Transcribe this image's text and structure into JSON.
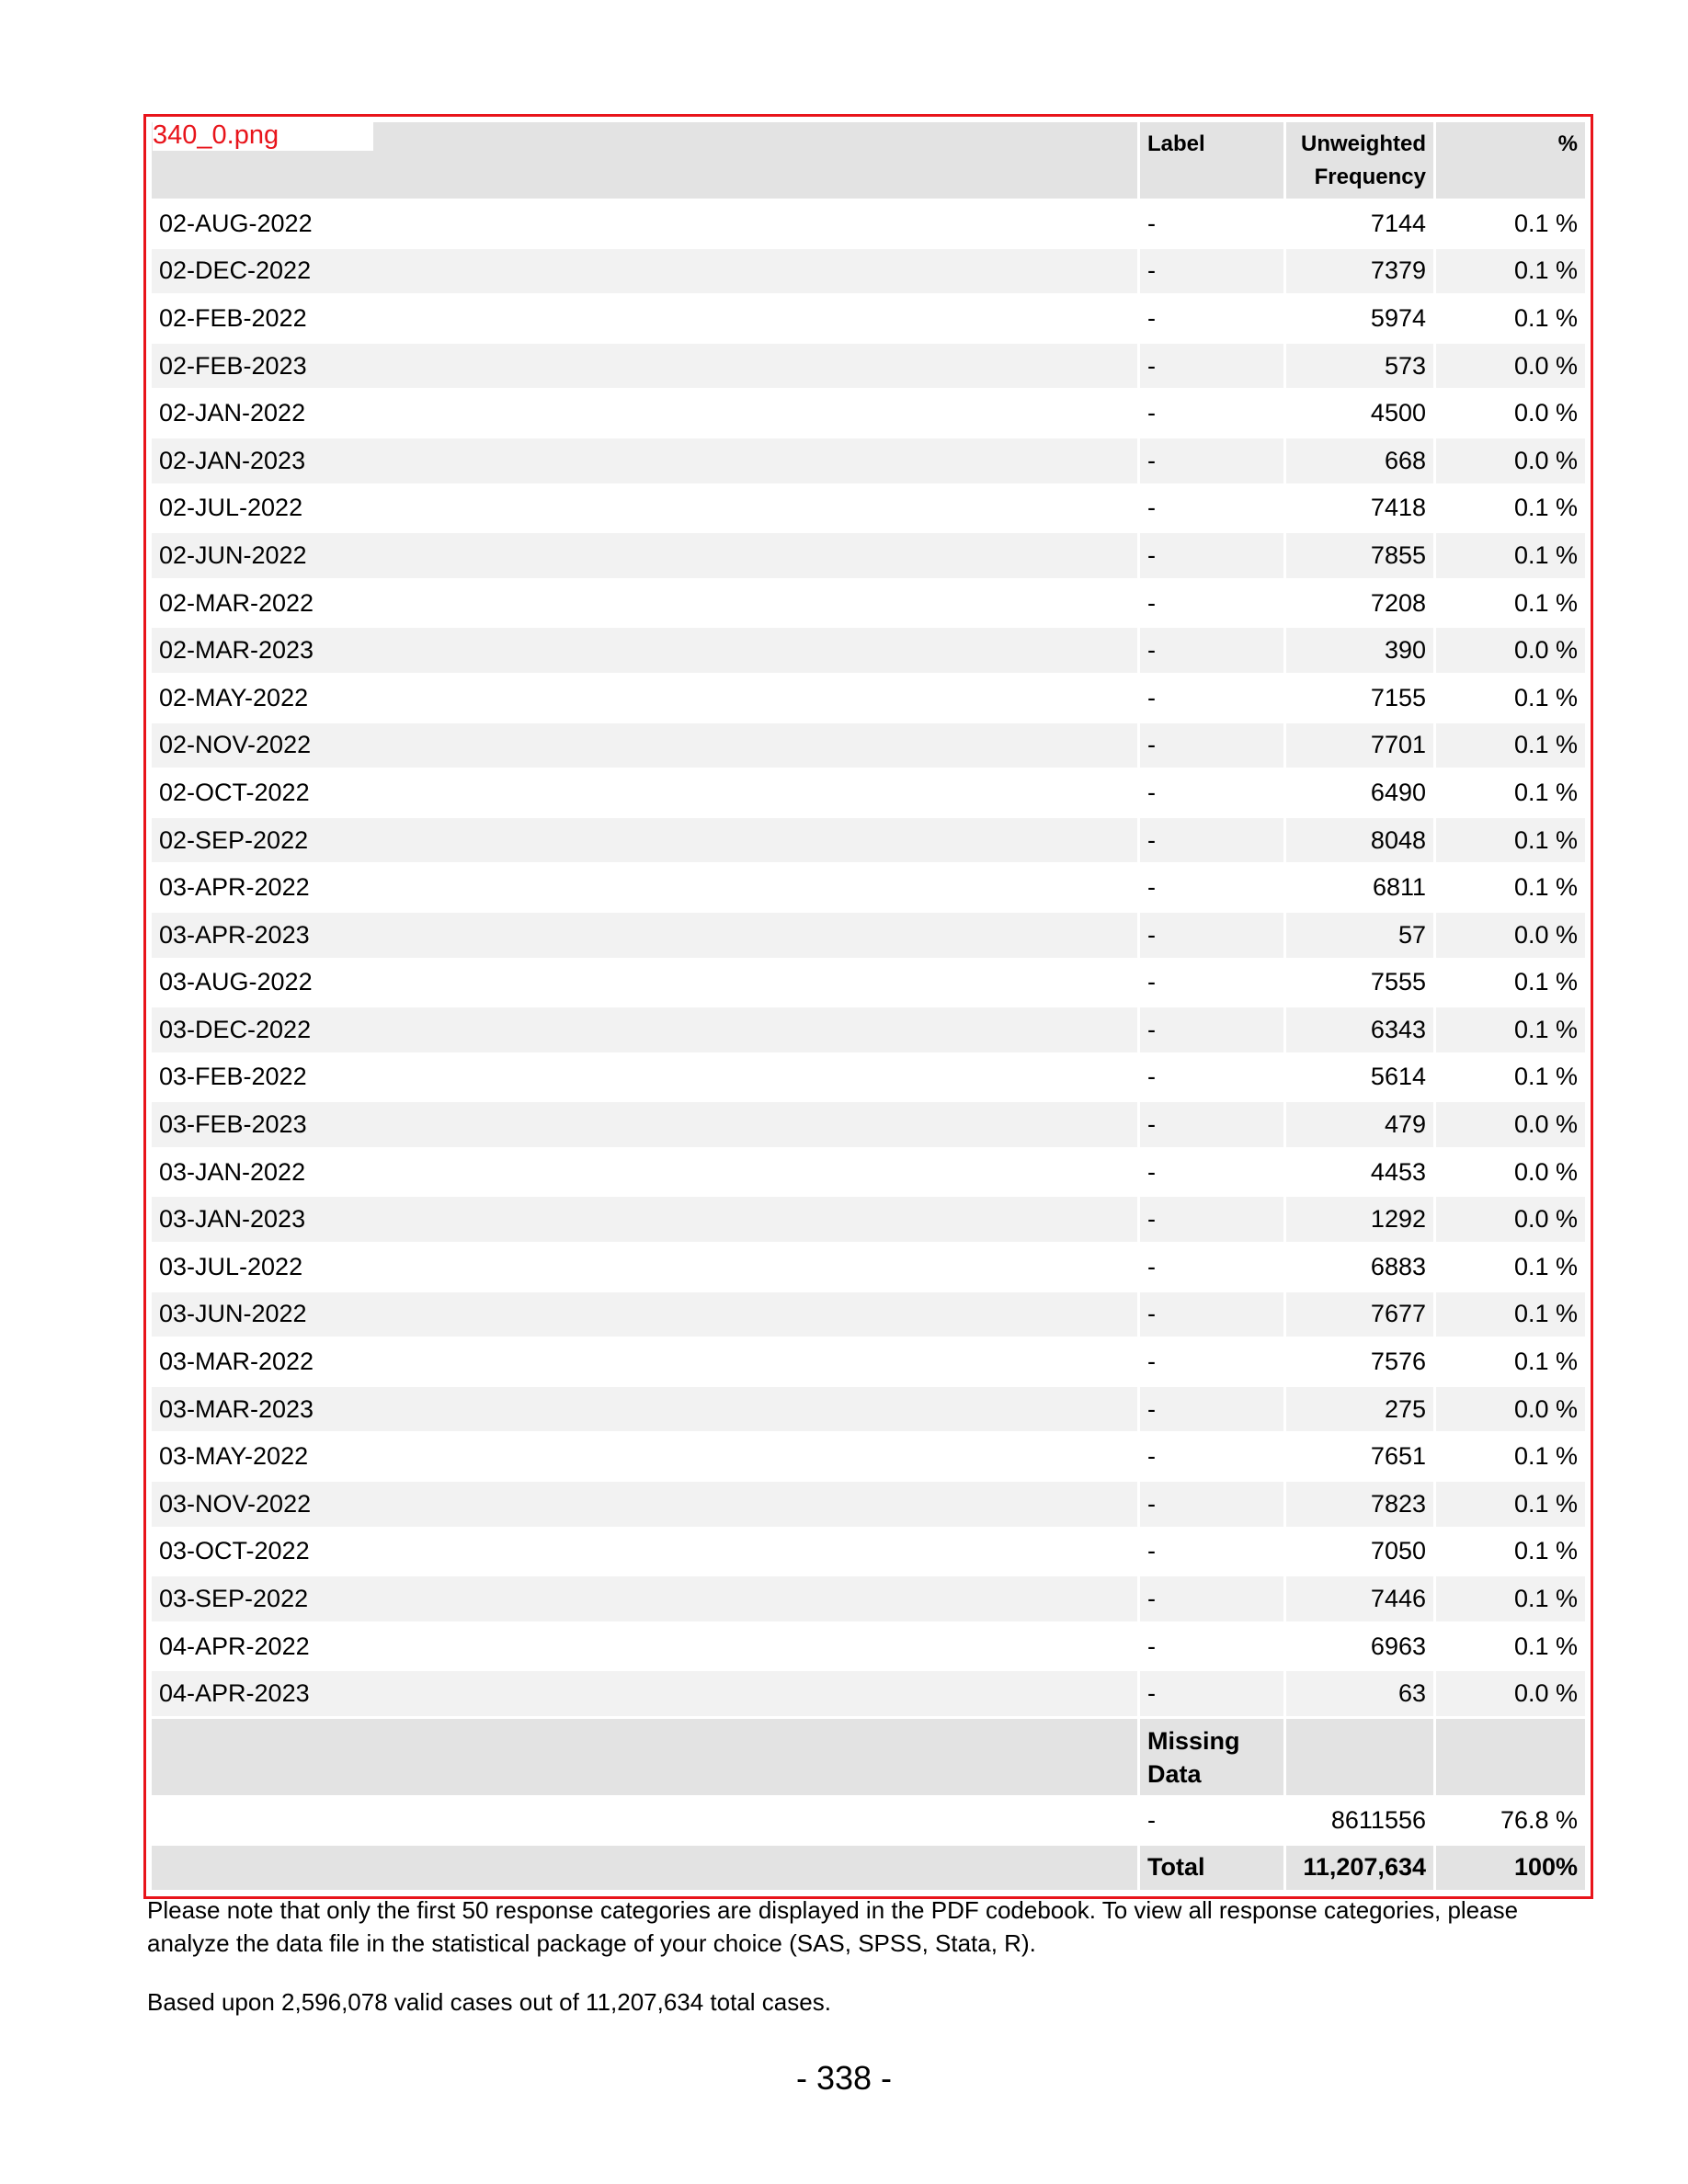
{
  "file_tag": "340_0.png",
  "table": {
    "headers": {
      "value": "",
      "label": "Label",
      "frequency": "Unweighted Frequency",
      "percent": "%"
    },
    "rows": [
      {
        "value": "02-AUG-2022",
        "label": "-",
        "frequency": "7144",
        "percent": "0.1 %"
      },
      {
        "value": "02-DEC-2022",
        "label": "-",
        "frequency": "7379",
        "percent": "0.1 %"
      },
      {
        "value": "02-FEB-2022",
        "label": "-",
        "frequency": "5974",
        "percent": "0.1 %"
      },
      {
        "value": "02-FEB-2023",
        "label": "-",
        "frequency": "573",
        "percent": "0.0 %"
      },
      {
        "value": "02-JAN-2022",
        "label": "-",
        "frequency": "4500",
        "percent": "0.0 %"
      },
      {
        "value": "02-JAN-2023",
        "label": "-",
        "frequency": "668",
        "percent": "0.0 %"
      },
      {
        "value": "02-JUL-2022",
        "label": "-",
        "frequency": "7418",
        "percent": "0.1 %"
      },
      {
        "value": "02-JUN-2022",
        "label": "-",
        "frequency": "7855",
        "percent": "0.1 %"
      },
      {
        "value": "02-MAR-2022",
        "label": "-",
        "frequency": "7208",
        "percent": "0.1 %"
      },
      {
        "value": "02-MAR-2023",
        "label": "-",
        "frequency": "390",
        "percent": "0.0 %"
      },
      {
        "value": "02-MAY-2022",
        "label": "-",
        "frequency": "7155",
        "percent": "0.1 %"
      },
      {
        "value": "02-NOV-2022",
        "label": "-",
        "frequency": "7701",
        "percent": "0.1 %"
      },
      {
        "value": "02-OCT-2022",
        "label": "-",
        "frequency": "6490",
        "percent": "0.1 %"
      },
      {
        "value": "02-SEP-2022",
        "label": "-",
        "frequency": "8048",
        "percent": "0.1 %"
      },
      {
        "value": "03-APR-2022",
        "label": "-",
        "frequency": "6811",
        "percent": "0.1 %"
      },
      {
        "value": "03-APR-2023",
        "label": "-",
        "frequency": "57",
        "percent": "0.0 %"
      },
      {
        "value": "03-AUG-2022",
        "label": "-",
        "frequency": "7555",
        "percent": "0.1 %"
      },
      {
        "value": "03-DEC-2022",
        "label": "-",
        "frequency": "6343",
        "percent": "0.1 %"
      },
      {
        "value": "03-FEB-2022",
        "label": "-",
        "frequency": "5614",
        "percent": "0.1 %"
      },
      {
        "value": "03-FEB-2023",
        "label": "-",
        "frequency": "479",
        "percent": "0.0 %"
      },
      {
        "value": "03-JAN-2022",
        "label": "-",
        "frequency": "4453",
        "percent": "0.0 %"
      },
      {
        "value": "03-JAN-2023",
        "label": "-",
        "frequency": "1292",
        "percent": "0.0 %"
      },
      {
        "value": "03-JUL-2022",
        "label": "-",
        "frequency": "6883",
        "percent": "0.1 %"
      },
      {
        "value": "03-JUN-2022",
        "label": "-",
        "frequency": "7677",
        "percent": "0.1 %"
      },
      {
        "value": "03-MAR-2022",
        "label": "-",
        "frequency": "7576",
        "percent": "0.1 %"
      },
      {
        "value": "03-MAR-2023",
        "label": "-",
        "frequency": "275",
        "percent": "0.0 %"
      },
      {
        "value": "03-MAY-2022",
        "label": "-",
        "frequency": "7651",
        "percent": "0.1 %"
      },
      {
        "value": "03-NOV-2022",
        "label": "-",
        "frequency": "7823",
        "percent": "0.1 %"
      },
      {
        "value": "03-OCT-2022",
        "label": "-",
        "frequency": "7050",
        "percent": "0.1 %"
      },
      {
        "value": "03-SEP-2022",
        "label": "-",
        "frequency": "7446",
        "percent": "0.1 %"
      },
      {
        "value": "04-APR-2022",
        "label": "-",
        "frequency": "6963",
        "percent": "0.1 %"
      },
      {
        "value": "04-APR-2023",
        "label": "-",
        "frequency": "63",
        "percent": "0.0 %"
      }
    ],
    "missing_header": "Missing Data",
    "missing_row": {
      "value": "",
      "label": "-",
      "frequency": "8611556",
      "percent": "76.8 %"
    },
    "total_row": {
      "value": "",
      "label": "Total",
      "frequency": "11,207,634",
      "percent": "100%"
    }
  },
  "notes": {
    "note_1": "Please note that only the first 50 response categories are displayed in the PDF codebook. To view all response categories, please analyze the data file in the statistical package of your choice (SAS, SPSS, Stata, R).",
    "note_2": "Based upon 2,596,078 valid cases out of 11,207,634 total cases."
  },
  "page_number": "- 338 -",
  "colors": {
    "frame": "#e8141b",
    "header_bg": "#e3e3e3",
    "stripe_bg": "#f2f2f2"
  }
}
